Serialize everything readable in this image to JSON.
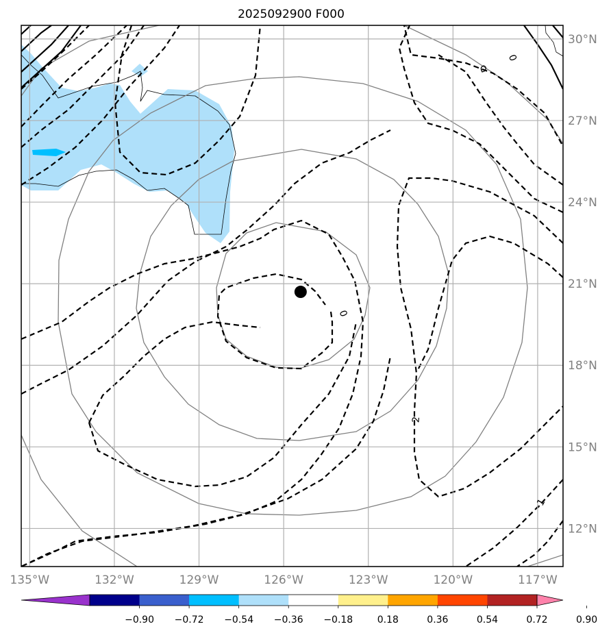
{
  "chart_data": {
    "type": "contour-map",
    "title": "2025092900 F000",
    "map": {
      "lon_range": [
        -135.3,
        -116.1
      ],
      "lat_range": [
        10.6,
        30.5
      ],
      "x_ticks": [
        {
          "value": -135,
          "label": "135°W"
        },
        {
          "value": -132,
          "label": "132°W"
        },
        {
          "value": -129,
          "label": "129°W"
        },
        {
          "value": -126,
          "label": "126°W"
        },
        {
          "value": -123,
          "label": "123°W"
        },
        {
          "value": -120,
          "label": "120°W"
        },
        {
          "value": -117,
          "label": "117°W"
        }
      ],
      "y_ticks": [
        {
          "value": 30,
          "label": "30°N"
        },
        {
          "value": 27,
          "label": "27°N"
        },
        {
          "value": 24,
          "label": "24°N"
        },
        {
          "value": 21,
          "label": "21°N"
        },
        {
          "value": 18,
          "label": "18°N"
        },
        {
          "value": 15,
          "label": "15°N"
        },
        {
          "value": 12,
          "label": "12°N"
        }
      ],
      "grid": true,
      "center_marker": {
        "lon": -125.4,
        "lat": 20.7
      },
      "range_rings": 4
    },
    "contour_labels": [
      {
        "text": "0",
        "lon": -123.9,
        "lat": 19.9,
        "rot": 70
      },
      {
        "text": "2",
        "lon": -121.3,
        "lat": 16.0,
        "rot": -85
      },
      {
        "text": "-1",
        "lon": -116.9,
        "lat": 12.9,
        "rot": -60
      },
      {
        "text": "0",
        "lon": -117.9,
        "lat": 29.3,
        "rot": 70
      }
    ],
    "colorbar": {
      "ticks": [
        "−0.90",
        "−0.72",
        "−0.54",
        "−0.36",
        "−0.18",
        "0.18",
        "0.36",
        "0.54",
        "0.72",
        "0.90"
      ],
      "colors": [
        "#9932cc",
        "#00008b",
        "#3a5fcd",
        "#00bfff",
        "#afe0fa",
        "#ffffff",
        "#fff08c",
        "#ffa500",
        "#ff4500",
        "#b22222",
        "#ff82ab"
      ],
      "extend": "both"
    }
  }
}
